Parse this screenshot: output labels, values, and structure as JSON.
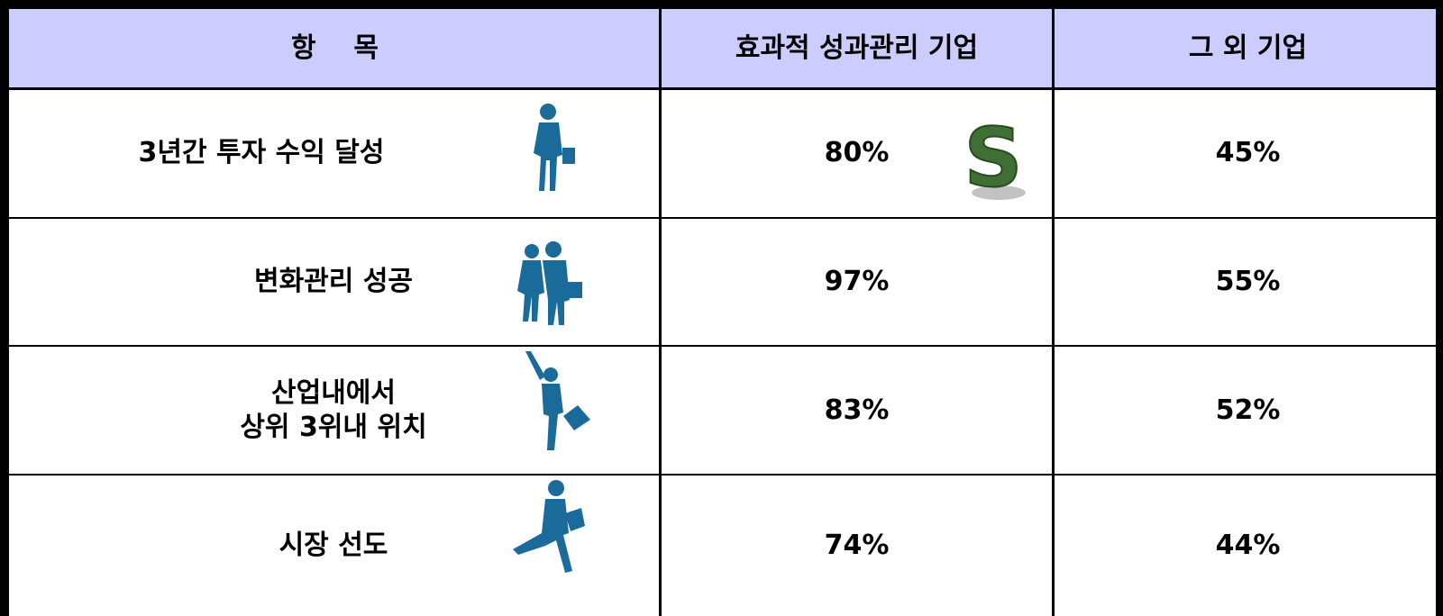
{
  "table": {
    "header": [
      "항    목",
      "효과적 성과관리 기업",
      "그 외 기업"
    ],
    "rows": [
      [
        "3년간 투자 수익 달성",
        "80%",
        "45%"
      ],
      [
        "변화관리 성공",
        "97%",
        "55%"
      ],
      [
        "산업내에서\n상위 3위내 위치",
        "83%",
        "52%"
      ],
      [
        "시장 선도",
        "74%",
        "44%"
      ]
    ]
  }
}
